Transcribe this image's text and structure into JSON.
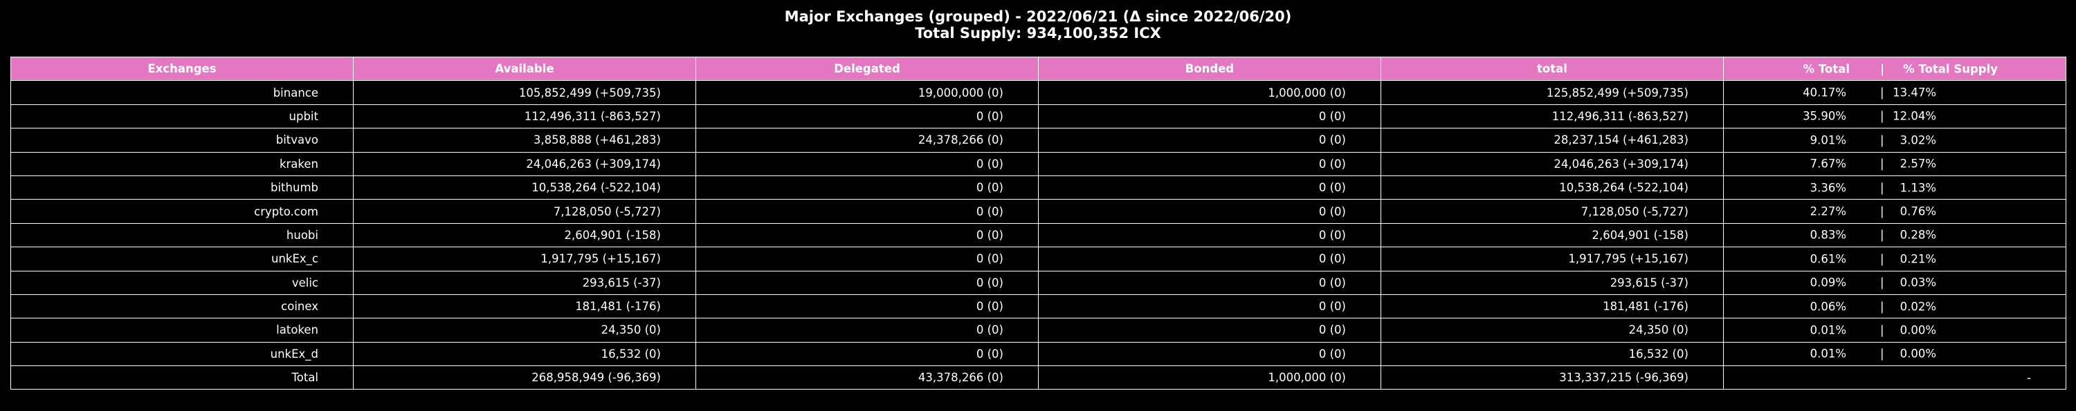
{
  "title": {
    "line1": "Major Exchanges (grouped) - 2022/06/21 (Δ since 2022/06/20)",
    "line2": "Total Supply: 934,100,352 ICX"
  },
  "colors": {
    "header_bg": "#e377c2",
    "cell_bg": "#000000",
    "text": "#ffffff",
    "grid": "#ffffff"
  },
  "chart_data": {
    "type": "table",
    "title": "Major Exchanges (grouped) - 2022/06/21 (Δ since 2022/06/20)",
    "subtitle": "Total Supply: 934,100,352 ICX",
    "columns": [
      "Exchanges",
      "Available",
      "Delegated",
      "Bonded",
      "total",
      "% Total",
      "|",
      "% Total Supply"
    ],
    "rows": [
      {
        "exchange": "binance",
        "available": "105,852,499 (+509,735)",
        "delegated": "19,000,000 (0)",
        "bonded": "1,000,000 (0)",
        "total": "125,852,499 (+509,735)",
        "pct_total": "40.17%",
        "sep": "|",
        "pct_supply": "13.47%"
      },
      {
        "exchange": "upbit",
        "available": "112,496,311 (-863,527)",
        "delegated": "0 (0)",
        "bonded": "0 (0)",
        "total": "112,496,311 (-863,527)",
        "pct_total": "35.90%",
        "sep": "|",
        "pct_supply": "12.04%"
      },
      {
        "exchange": "bitvavo",
        "available": "3,858,888 (+461,283)",
        "delegated": "24,378,266 (0)",
        "bonded": "0 (0)",
        "total": "28,237,154 (+461,283)",
        "pct_total": "9.01%",
        "sep": "|",
        "pct_supply": "3.02%"
      },
      {
        "exchange": "kraken",
        "available": "24,046,263 (+309,174)",
        "delegated": "0 (0)",
        "bonded": "0 (0)",
        "total": "24,046,263 (+309,174)",
        "pct_total": "7.67%",
        "sep": "|",
        "pct_supply": "2.57%"
      },
      {
        "exchange": "bithumb",
        "available": "10,538,264 (-522,104)",
        "delegated": "0 (0)",
        "bonded": "0 (0)",
        "total": "10,538,264 (-522,104)",
        "pct_total": "3.36%",
        "sep": "|",
        "pct_supply": "1.13%"
      },
      {
        "exchange": "crypto.com",
        "available": "7,128,050 (-5,727)",
        "delegated": "0 (0)",
        "bonded": "0 (0)",
        "total": "7,128,050 (-5,727)",
        "pct_total": "2.27%",
        "sep": "|",
        "pct_supply": "0.76%"
      },
      {
        "exchange": "huobi",
        "available": "2,604,901 (-158)",
        "delegated": "0 (0)",
        "bonded": "0 (0)",
        "total": "2,604,901 (-158)",
        "pct_total": "0.83%",
        "sep": "|",
        "pct_supply": "0.28%"
      },
      {
        "exchange": "unkEx_c",
        "available": "1,917,795 (+15,167)",
        "delegated": "0 (0)",
        "bonded": "0 (0)",
        "total": "1,917,795 (+15,167)",
        "pct_total": "0.61%",
        "sep": "|",
        "pct_supply": "0.21%"
      },
      {
        "exchange": "velic",
        "available": "293,615 (-37)",
        "delegated": "0 (0)",
        "bonded": "0 (0)",
        "total": "293,615 (-37)",
        "pct_total": "0.09%",
        "sep": "|",
        "pct_supply": "0.03%"
      },
      {
        "exchange": "coinex",
        "available": "181,481 (-176)",
        "delegated": "0 (0)",
        "bonded": "0 (0)",
        "total": "181,481 (-176)",
        "pct_total": "0.06%",
        "sep": "|",
        "pct_supply": "0.02%"
      },
      {
        "exchange": "latoken",
        "available": "24,350 (0)",
        "delegated": "0 (0)",
        "bonded": "0 (0)",
        "total": "24,350 (0)",
        "pct_total": "0.01%",
        "sep": "|",
        "pct_supply": "0.00%"
      },
      {
        "exchange": "unkEx_d",
        "available": "16,532 (0)",
        "delegated": "0 (0)",
        "bonded": "0 (0)",
        "total": "16,532 (0)",
        "pct_total": "0.01%",
        "sep": "|",
        "pct_supply": "0.00%"
      },
      {
        "exchange": "Total",
        "available": "268,958,949 (-96,369)",
        "delegated": "43,378,266 (0)",
        "bonded": "1,000,000 (0)",
        "total": "313,337,215 (-96,369)",
        "pct_total": "",
        "sep": "",
        "pct_supply": "",
        "pct_placeholder": "-"
      }
    ]
  }
}
